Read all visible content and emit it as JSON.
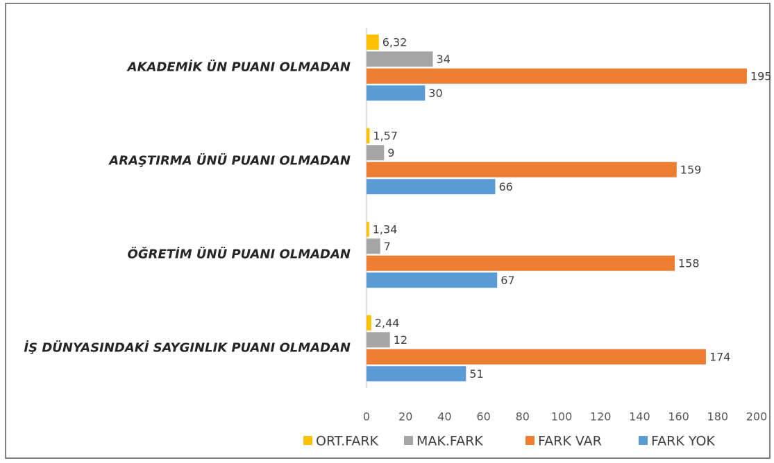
{
  "chart_data": {
    "type": "bar",
    "orientation": "horizontal",
    "categories": [
      "AKADEMİK ÜN PUANI OLMADAN",
      "ARAŞTIRMA ÜNÜ PUANI OLMADAN",
      "ÖĞRETİM ÜNÜ PUANI OLMADAN",
      "İŞ DÜNYASINDAKİ SAYGINLIK PUANI OLMADAN"
    ],
    "series": [
      {
        "name": "ORT.FARK",
        "color": "#ffc000",
        "values": [
          6.32,
          1.57,
          1.34,
          2.44
        ],
        "value_labels": [
          "6,32",
          "1,57",
          "1,34",
          "2,44"
        ]
      },
      {
        "name": "MAK.FARK",
        "color": "#a5a5a5",
        "values": [
          34,
          9,
          7,
          12
        ]
      },
      {
        "name": "FARK VAR",
        "color": "#ed7d31",
        "values": [
          195,
          159,
          158,
          174
        ]
      },
      {
        "name": "FARK YOK",
        "color": "#5b9bd5",
        "values": [
          30,
          66,
          67,
          51
        ]
      }
    ],
    "xlim": [
      0,
      200
    ],
    "xticks": [
      0,
      20,
      40,
      60,
      80,
      100,
      120,
      140,
      160,
      180,
      200
    ],
    "grid": false,
    "legend": "bottom"
  }
}
